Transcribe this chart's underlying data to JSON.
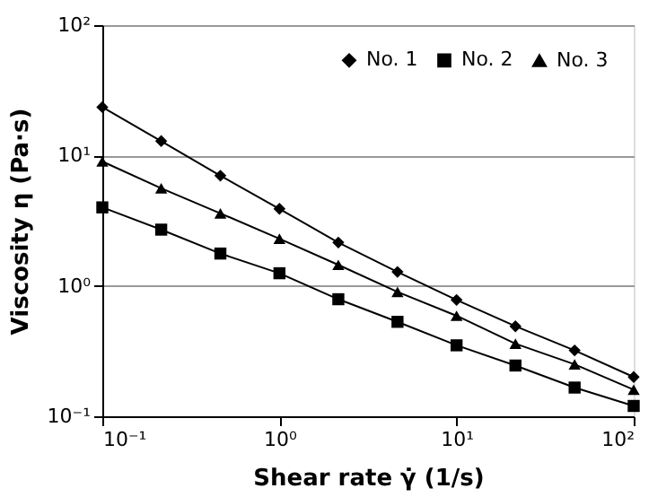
{
  "chart_data": {
    "type": "line",
    "xlabel": "Shear rate γ̇ (1/s)",
    "ylabel": "Viscosity η (Pa·s)",
    "x": [
      0.1,
      0.215,
      0.464,
      1,
      2.15,
      4.64,
      10,
      21.5,
      46.4,
      100
    ],
    "series": [
      {
        "name": "No. 1",
        "color": "#000000",
        "marker": "diamond",
        "values": [
          23.5,
          12.9,
          7.0,
          3.9,
          2.15,
          1.28,
          0.78,
          0.49,
          0.32,
          0.2
        ]
      },
      {
        "name": "No. 2",
        "color": "#000000",
        "marker": "square",
        "values": [
          4.0,
          2.7,
          1.77,
          1.25,
          0.79,
          0.53,
          0.35,
          0.245,
          0.166,
          0.12
        ]
      },
      {
        "name": "No. 3",
        "color": "#000000",
        "marker": "triangle",
        "values": [
          9.0,
          5.6,
          3.6,
          2.3,
          1.45,
          0.9,
          0.59,
          0.36,
          0.25,
          0.16
        ]
      }
    ],
    "log": "xy",
    "xlim": [
      0.1,
      100
    ],
    "ylim": [
      0.1,
      100
    ],
    "xticks": [
      {
        "value": 0.1,
        "label": "10⁻¹"
      },
      {
        "value": 1,
        "label": "10⁰"
      },
      {
        "value": 10,
        "label": "10¹"
      },
      {
        "value": 100,
        "label": "10²"
      }
    ],
    "yticks": [
      {
        "value": 0.1,
        "label": "10⁻¹"
      },
      {
        "value": 1,
        "label": "10⁰"
      },
      {
        "value": 10,
        "label": "10¹"
      },
      {
        "value": 100,
        "label": "10²"
      }
    ],
    "grid": "y",
    "legend": "top right",
    "line_style": "solid"
  }
}
